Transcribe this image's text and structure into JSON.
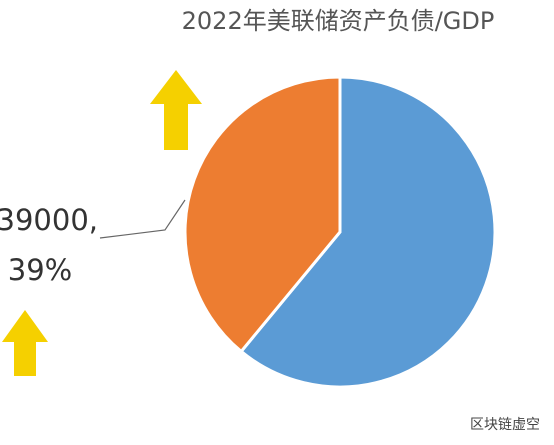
{
  "chart_data": {
    "type": "pie",
    "title": "2022年美联储资产负债/GDP",
    "values": [
      61,
      39
    ],
    "value_labels": [
      null,
      "39%"
    ],
    "colors": [
      "#5b9bd5",
      "#ed7d31"
    ],
    "annotation": "39000,",
    "watermark": "区块链虚空"
  }
}
